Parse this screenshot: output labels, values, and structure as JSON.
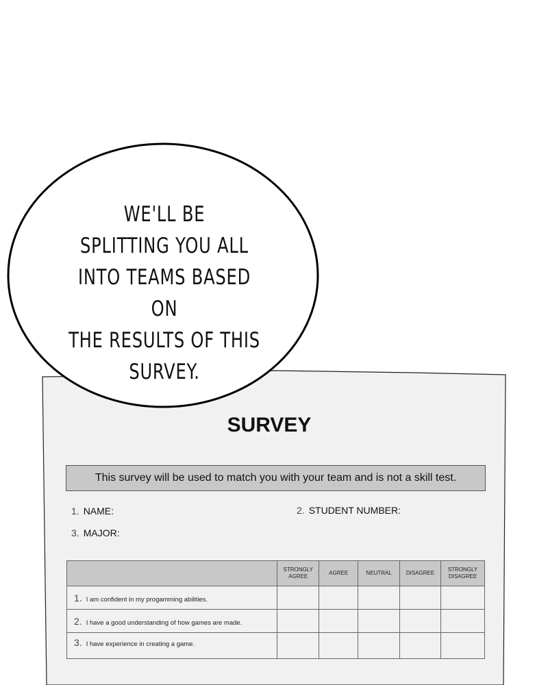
{
  "bubble": {
    "lines": [
      "WE'LL BE",
      "SPLITTING YOU ALL",
      "INTO TEAMS BASED ON",
      "THE RESULTS OF THIS",
      "SURVEY."
    ]
  },
  "survey": {
    "title": "SURVEY",
    "note": "This survey will be used to match you with your team and is not a skill test.",
    "fields": [
      {
        "num": "1.",
        "label": "NAME:"
      },
      {
        "num": "2.",
        "label": "STUDENT NUMBER:"
      },
      {
        "num": "3.",
        "label": "MAJOR:"
      }
    ],
    "columns": [
      [
        "STRONGLY",
        "AGREE"
      ],
      [
        "AGREE"
      ],
      [
        "NEUTRAL"
      ],
      [
        "DISAGREE"
      ],
      [
        "STRONGLY",
        "DISAGREE"
      ]
    ],
    "questions": [
      {
        "num": "1.",
        "text": "I am confident in my progamming abilities."
      },
      {
        "num": "2.",
        "text": "I have a good understanding of how games are made."
      },
      {
        "num": "3.",
        "text": "I have experience in creating a game."
      }
    ]
  }
}
